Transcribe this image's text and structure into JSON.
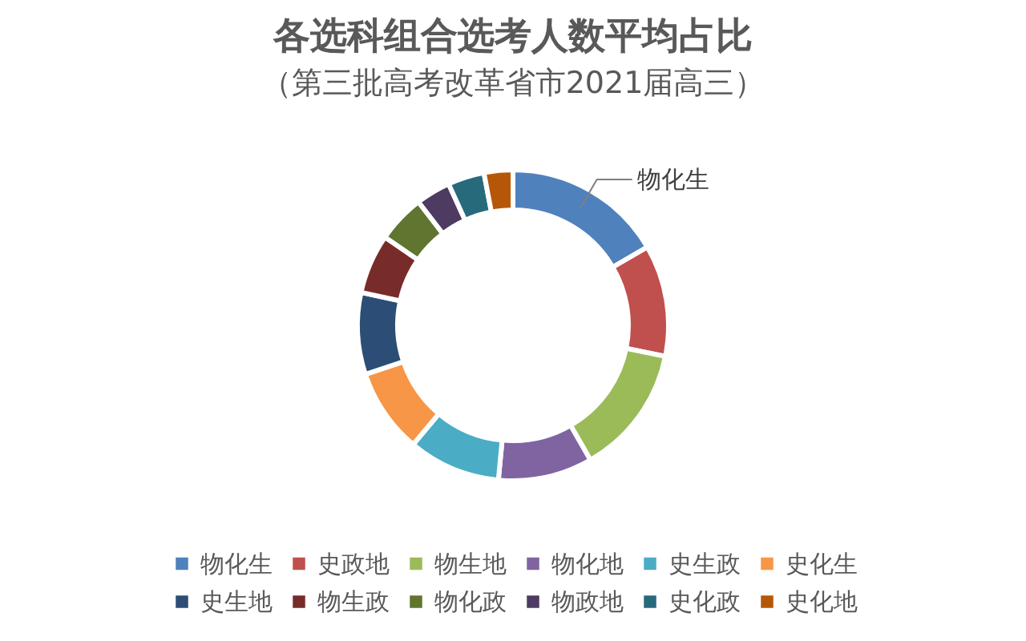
{
  "chart_data": {
    "type": "donut",
    "title": "各选科组合选考人数平均占比",
    "subtitle": "（第三批高考改革省市2021届高三）",
    "categories": [
      "物化生",
      "史政地",
      "物生地",
      "物化地",
      "史生政",
      "史化生",
      "史生地",
      "物生政",
      "物化政",
      "物政地",
      "史化政",
      "史化地"
    ],
    "values": [
      16.6,
      11.6,
      13.5,
      9.8,
      9.6,
      8.8,
      8.5,
      6.2,
      5.0,
      3.6,
      3.8,
      3.0
    ],
    "colors": [
      "#4f81bd",
      "#c0504d",
      "#9bbb59",
      "#8064a2",
      "#4bacc6",
      "#f79646",
      "#2c4d75",
      "#772c2a",
      "#5f7530",
      "#4d3b62",
      "#276a7c",
      "#b65708"
    ],
    "legend": "bottom",
    "annotations": [
      {
        "text": "物化生",
        "x": "物化生"
      }
    ]
  }
}
